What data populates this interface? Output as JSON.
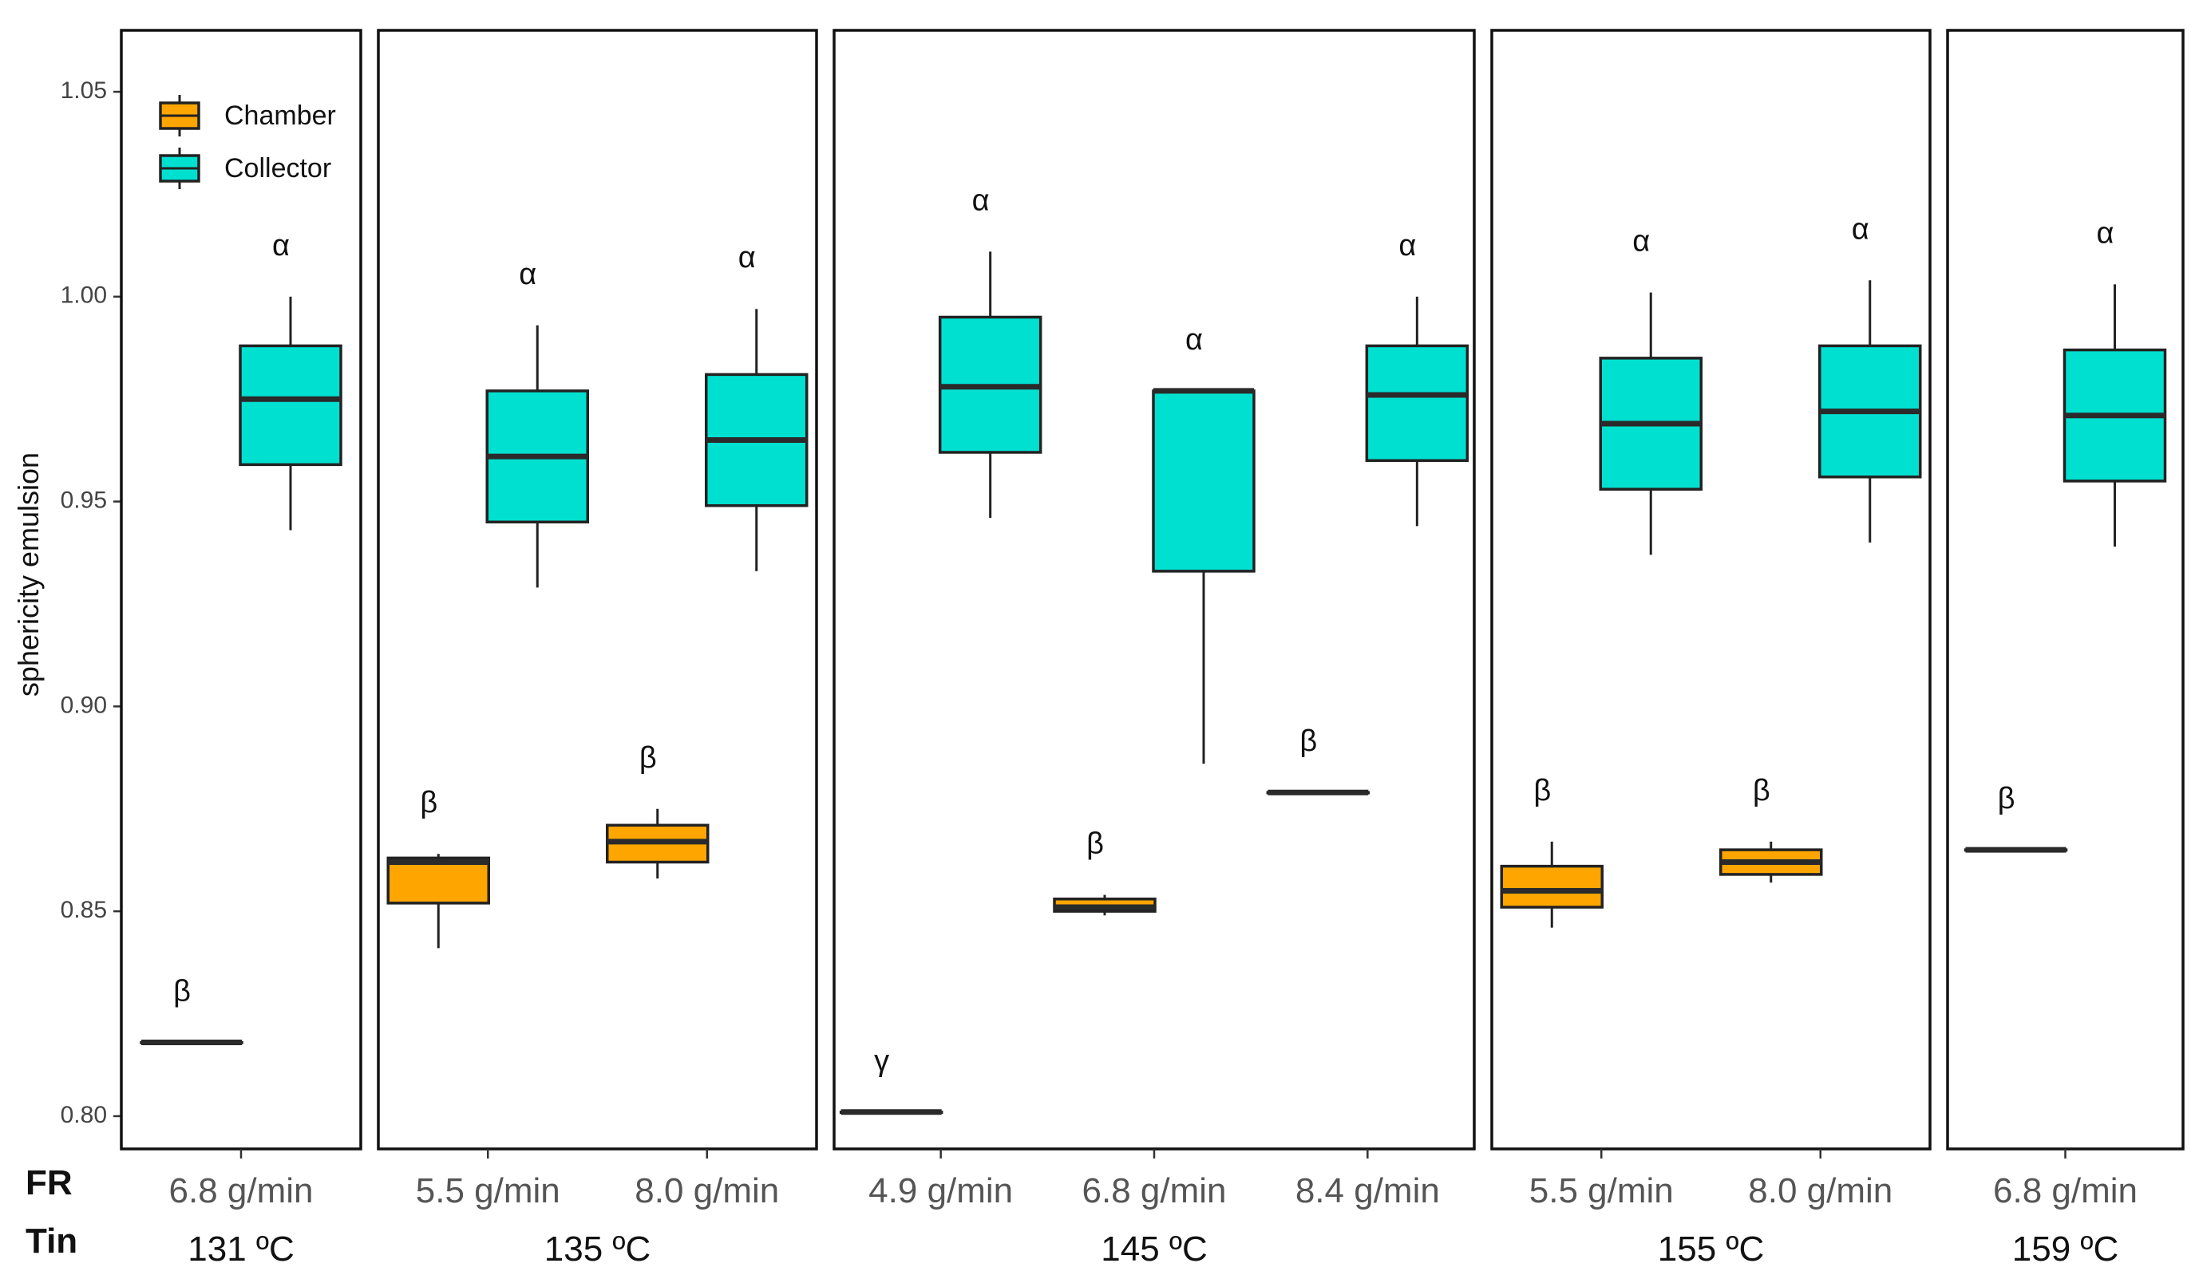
{
  "chart_data": {
    "type": "boxplot",
    "ylabel": "sphericity emulsion",
    "ylim": [
      0.792,
      1.065
    ],
    "yticks": [
      0.8,
      0.85,
      0.9,
      0.95,
      1.0,
      1.05
    ],
    "ytick_labels": [
      "0.80",
      "0.85",
      "0.90",
      "0.95",
      "1.00",
      "1.05"
    ],
    "row_labels": {
      "fr": "FR",
      "tin": "Tin"
    },
    "legend": [
      {
        "name": "Chamber",
        "color": "#FFA500"
      },
      {
        "name": "Collector",
        "color": "#00E0D0"
      }
    ],
    "colors": {
      "chamber": "#FFA500",
      "collector": "#00E0D0",
      "line": "#222222"
    },
    "panels": [
      {
        "tin": "131 ºC",
        "groups": [
          {
            "fr": "6.8 g/min",
            "chamber": {
              "min": 0.818,
              "q1": 0.818,
              "median": 0.818,
              "q3": 0.818,
              "max": 0.818,
              "letter": "β"
            },
            "collector": {
              "min": 0.943,
              "q1": 0.959,
              "median": 0.975,
              "q3": 0.988,
              "max": 1.0,
              "letter": "α"
            }
          }
        ]
      },
      {
        "tin": "135 ºC",
        "groups": [
          {
            "fr": "5.5 g/min",
            "chamber": {
              "min": 0.841,
              "q1": 0.852,
              "median": 0.862,
              "q3": 0.863,
              "max": 0.864,
              "letter": "β"
            },
            "collector": {
              "min": 0.929,
              "q1": 0.945,
              "median": 0.961,
              "q3": 0.977,
              "max": 0.993,
              "letter": "α"
            }
          },
          {
            "fr": "8.0 g/min",
            "chamber": {
              "min": 0.858,
              "q1": 0.862,
              "median": 0.867,
              "q3": 0.871,
              "max": 0.875,
              "letter": "β"
            },
            "collector": {
              "min": 0.933,
              "q1": 0.949,
              "median": 0.965,
              "q3": 0.981,
              "max": 0.997,
              "letter": "α"
            }
          }
        ]
      },
      {
        "tin": "145 ºC",
        "groups": [
          {
            "fr": "4.9 g/min",
            "chamber": {
              "min": 0.801,
              "q1": 0.801,
              "median": 0.801,
              "q3": 0.801,
              "max": 0.801,
              "letter": "γ"
            },
            "collector": {
              "min": 0.946,
              "q1": 0.962,
              "median": 0.978,
              "q3": 0.995,
              "max": 1.011,
              "letter": "α"
            }
          },
          {
            "fr": "6.8 g/min",
            "chamber": {
              "min": 0.849,
              "q1": 0.85,
              "median": 0.851,
              "q3": 0.853,
              "max": 0.854,
              "letter": "β"
            },
            "collector": {
              "min": 0.886,
              "q1": 0.933,
              "median": 0.977,
              "q3": 0.977,
              "max": 0.977,
              "letter": "α"
            }
          },
          {
            "fr": "8.4 g/min",
            "chamber": {
              "min": 0.879,
              "q1": 0.879,
              "median": 0.879,
              "q3": 0.879,
              "max": 0.879,
              "letter": "β"
            },
            "collector": {
              "min": 0.944,
              "q1": 0.96,
              "median": 0.976,
              "q3": 0.988,
              "max": 1.0,
              "letter": "α"
            }
          }
        ]
      },
      {
        "tin": "155 ºC",
        "groups": [
          {
            "fr": "5.5 g/min",
            "chamber": {
              "min": 0.846,
              "q1": 0.851,
              "median": 0.855,
              "q3": 0.861,
              "max": 0.867,
              "letter": "β"
            },
            "collector": {
              "min": 0.937,
              "q1": 0.953,
              "median": 0.969,
              "q3": 0.985,
              "max": 1.001,
              "letter": "α"
            }
          },
          {
            "fr": "8.0 g/min",
            "chamber": {
              "min": 0.857,
              "q1": 0.859,
              "median": 0.862,
              "q3": 0.865,
              "max": 0.867,
              "letter": "β"
            },
            "collector": {
              "min": 0.94,
              "q1": 0.956,
              "median": 0.972,
              "q3": 0.988,
              "max": 1.004,
              "letter": "α"
            }
          }
        ]
      },
      {
        "tin": "159 ºC",
        "groups": [
          {
            "fr": "6.8 g/min",
            "chamber": {
              "min": 0.865,
              "q1": 0.865,
              "median": 0.865,
              "q3": 0.865,
              "max": 0.865,
              "letter": "β"
            },
            "collector": {
              "min": 0.939,
              "q1": 0.955,
              "median": 0.971,
              "q3": 0.987,
              "max": 1.003,
              "letter": "α"
            }
          }
        ]
      }
    ]
  }
}
